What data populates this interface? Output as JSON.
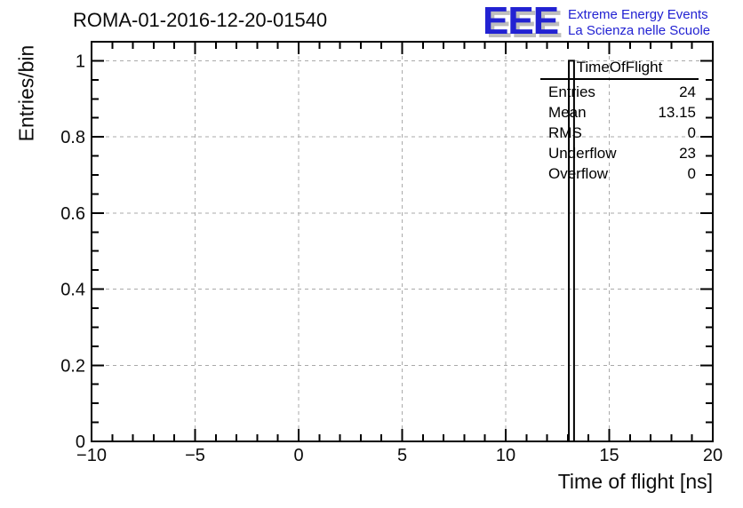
{
  "header": {
    "title": "ROMA-01-2016-12-20-01540",
    "logo": {
      "letters": "EEE",
      "line1": "Extreme Energy Events",
      "line2": "La Scienza nelle Scuole",
      "color": "#2222d2",
      "shadow_color": "#bdbdbd"
    }
  },
  "chart_data": {
    "type": "histogram",
    "title": "ROMA-01-2016-12-20-01540",
    "xlabel": "Time of flight [ns]",
    "ylabel": "Entries/bin",
    "xlim": [
      -10,
      20
    ],
    "ylim": [
      0,
      1.05
    ],
    "x_major_ticks": [
      -10,
      -5,
      0,
      5,
      10,
      15,
      20
    ],
    "x_tick_labels": [
      "−10",
      "−5",
      "0",
      "5",
      "10",
      "15",
      "20"
    ],
    "x_minor_step": 1,
    "y_major_ticks": [
      0,
      0.2,
      0.4,
      0.6,
      0.8,
      1
    ],
    "y_tick_labels": [
      "0",
      "0.2",
      "0.4",
      "0.6",
      "0.8",
      "1"
    ],
    "y_minor_step": 0.05,
    "grid": true,
    "grid_color": "#aaaaaa",
    "axis_color": "#000000",
    "line_color": "#000000",
    "bins": [
      {
        "x_low": 13.05,
        "x_high": 13.3,
        "value": 1
      }
    ],
    "stats": {
      "title": "TimeOfFlight",
      "rows": [
        {
          "label": "Entries",
          "value": "24"
        },
        {
          "label": "Mean",
          "value": "13.15"
        },
        {
          "label": "RMS",
          "value": "0"
        },
        {
          "label": "Underflow",
          "value": "23"
        },
        {
          "label": "Overflow",
          "value": "0"
        }
      ]
    }
  }
}
